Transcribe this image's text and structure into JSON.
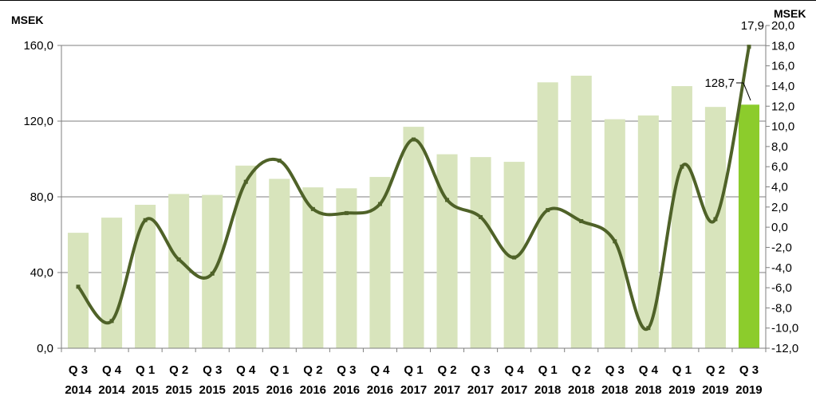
{
  "chart_data": {
    "type": "bar+line",
    "categories": [
      {
        "q": "Q 3",
        "y": "2014"
      },
      {
        "q": "Q 4",
        "y": "2014"
      },
      {
        "q": "Q 1",
        "y": "2015"
      },
      {
        "q": "Q 2",
        "y": "2015"
      },
      {
        "q": "Q 3",
        "y": "2015"
      },
      {
        "q": "Q 4",
        "y": "2015"
      },
      {
        "q": "Q 1",
        "y": "2016"
      },
      {
        "q": "Q 2",
        "y": "2016"
      },
      {
        "q": "Q 3",
        "y": "2016"
      },
      {
        "q": "Q 4",
        "y": "2016"
      },
      {
        "q": "Q 1",
        "y": "2017"
      },
      {
        "q": "Q 2",
        "y": "2017"
      },
      {
        "q": "Q 3",
        "y": "2017"
      },
      {
        "q": "Q 4",
        "y": "2017"
      },
      {
        "q": "Q 1",
        "y": "2018"
      },
      {
        "q": "Q 2",
        "y": "2018"
      },
      {
        "q": "Q 3",
        "y": "2018"
      },
      {
        "q": "Q 4",
        "y": "2018"
      },
      {
        "q": "Q 1",
        "y": "2019"
      },
      {
        "q": "Q 2",
        "y": "2019"
      },
      {
        "q": "Q 3",
        "y": "2019"
      }
    ],
    "bars": {
      "axis": "left",
      "values": [
        61.0,
        69.0,
        75.8,
        81.5,
        81.0,
        96.5,
        89.5,
        85.0,
        84.5,
        90.5,
        117.0,
        102.5,
        101.0,
        98.5,
        140.5,
        144.0,
        121.0,
        123.0,
        138.5,
        127.5,
        128.7
      ],
      "color": "#d8e4bc",
      "highlight_color": "#8ccc2c",
      "highlight_index": 20
    },
    "line": {
      "axis": "right",
      "values": [
        -5.9,
        -9.3,
        0.7,
        -3.2,
        -4.6,
        4.5,
        6.6,
        1.8,
        1.4,
        2.3,
        8.7,
        2.7,
        1.0,
        -3.0,
        1.7,
        0.6,
        -1.4,
        -10.0,
        6.0,
        0.8,
        17.9
      ],
      "color": "#4f6228"
    },
    "left_axis": {
      "unit": "MSEK",
      "ylim": [
        0,
        160
      ],
      "ticks": [
        "0,0",
        "40,0",
        "80,0",
        "120,0",
        "160,0"
      ]
    },
    "right_axis": {
      "unit": "MSEK",
      "ylim": [
        -12,
        20
      ],
      "ticks": [
        "-12,0",
        "-10,0",
        "-8,0",
        "-6,0",
        "-4,0",
        "-2,0",
        "0,0",
        "2,0",
        "4,0",
        "6,0",
        "8,0",
        "10,0",
        "12,0",
        "14,0",
        "16,0",
        "18,0",
        "20,0"
      ]
    },
    "data_labels": {
      "bar_last": "128,7",
      "line_last": "17,9"
    },
    "grid": true
  }
}
